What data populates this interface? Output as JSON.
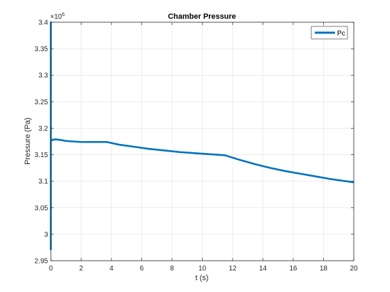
{
  "chart_data": {
    "type": "line",
    "title": "Chamber Pressure",
    "xlabel": "t (s)",
    "ylabel": "Pressure (Pa)",
    "y_exponent_label": "×10",
    "y_exponent_power": "6",
    "xlim": [
      0,
      20
    ],
    "ylim": [
      2.95,
      3.4
    ],
    "x_ticks": [
      0,
      2,
      4,
      6,
      8,
      10,
      12,
      14,
      16,
      18,
      20
    ],
    "x_tick_labels": [
      "0",
      "2",
      "4",
      "6",
      "8",
      "10",
      "12",
      "14",
      "16",
      "18",
      "20"
    ],
    "y_ticks": [
      2.95,
      3.0,
      3.05,
      3.1,
      3.15,
      3.2,
      3.25,
      3.3,
      3.35,
      3.4
    ],
    "y_tick_labels": [
      "2.95",
      "3",
      "3.05",
      "3.1",
      "3.15",
      "3.2",
      "3.25",
      "3.3",
      "3.35",
      "3.4"
    ],
    "grid": true,
    "legend_position": "top-right",
    "series": [
      {
        "name": "Pc",
        "color": "#0072bd",
        "x": [
          0,
          0,
          0,
          0.1,
          0.3,
          0.6,
          1.0,
          1.5,
          2.0,
          2.5,
          3.0,
          3.5,
          3.7,
          4.5,
          5.5,
          6.5,
          7.5,
          8.5,
          9.5,
          10.5,
          11.5,
          12.5,
          13.5,
          14.5,
          15.5,
          16.5,
          17.5,
          18.5,
          19.5,
          20.0
        ],
        "y": [
          2.97,
          3.4,
          3.176,
          3.178,
          3.179,
          3.178,
          3.176,
          3.175,
          3.174,
          3.174,
          3.174,
          3.174,
          3.174,
          3.169,
          3.165,
          3.161,
          3.158,
          3.155,
          3.153,
          3.151,
          3.149,
          3.14,
          3.132,
          3.125,
          3.119,
          3.114,
          3.109,
          3.104,
          3.1,
          3.098
        ]
      }
    ]
  }
}
